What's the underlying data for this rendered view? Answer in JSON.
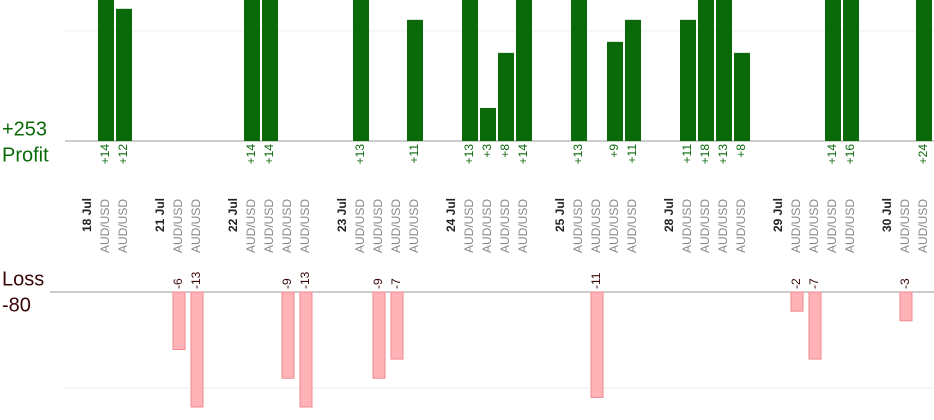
{
  "chart_data": {
    "type": "profit-loss-bars",
    "profit_total": "+253",
    "profit_title": "Profit",
    "loss_title": "Loss",
    "loss_total": "-80",
    "categories": [
      "18 Jul",
      "AUD/USD",
      "AUD/USD",
      "21 Jul",
      "AUD/USD",
      "AUD/USD",
      "22 Jul",
      "AUD/USD",
      "AUD/USD",
      "AUD/USD",
      "AUD/USD",
      "23 Jul",
      "AUD/USD",
      "AUD/USD",
      "AUD/USD",
      "AUD/USD",
      "24 Jul",
      "AUD/USD",
      "AUD/USD",
      "AUD/USD",
      "AUD/USD",
      "25 Jul",
      "AUD/USD",
      "AUD/USD",
      "AUD/USD",
      "AUD/USD",
      "28 Jul",
      "AUD/USD",
      "AUD/USD",
      "AUD/USD",
      "AUD/USD",
      "29 Jul",
      "AUD/USD",
      "AUD/USD",
      "AUD/USD",
      "AUD/USD",
      "30 Jul",
      "AUD/USD",
      "AUD/USD"
    ],
    "values": [
      null,
      14,
      12,
      null,
      -6,
      -13,
      null,
      14,
      14,
      -9,
      -13,
      null,
      13,
      -9,
      -7,
      11,
      null,
      13,
      3,
      8,
      14,
      null,
      13,
      -11,
      9,
      11,
      null,
      11,
      18,
      13,
      8,
      null,
      -2,
      -7,
      14,
      16,
      null,
      -3,
      24
    ],
    "value_labels": [
      null,
      "+14",
      "+12",
      null,
      "-6",
      "-13",
      null,
      "+14",
      "+14",
      "-9",
      "-13",
      null,
      "+13",
      "-9",
      "-7",
      "+11",
      null,
      "+13",
      "+3",
      "+8",
      "+14",
      null,
      "+13",
      "-11",
      "+9",
      "+11",
      null,
      "+11",
      "+18",
      "+13",
      "+8",
      null,
      "-2",
      "-7",
      "+14",
      "+16",
      null,
      "-3",
      "+24"
    ],
    "profit_color": "#0a6a0a",
    "loss_color": "#ffb3b6",
    "ylim": [
      0,
      12.8
    ],
    "y2lim": [
      -12,
      0
    ],
    "gridlines": [
      10
    ],
    "y2gridlines": [
      -10
    ]
  }
}
